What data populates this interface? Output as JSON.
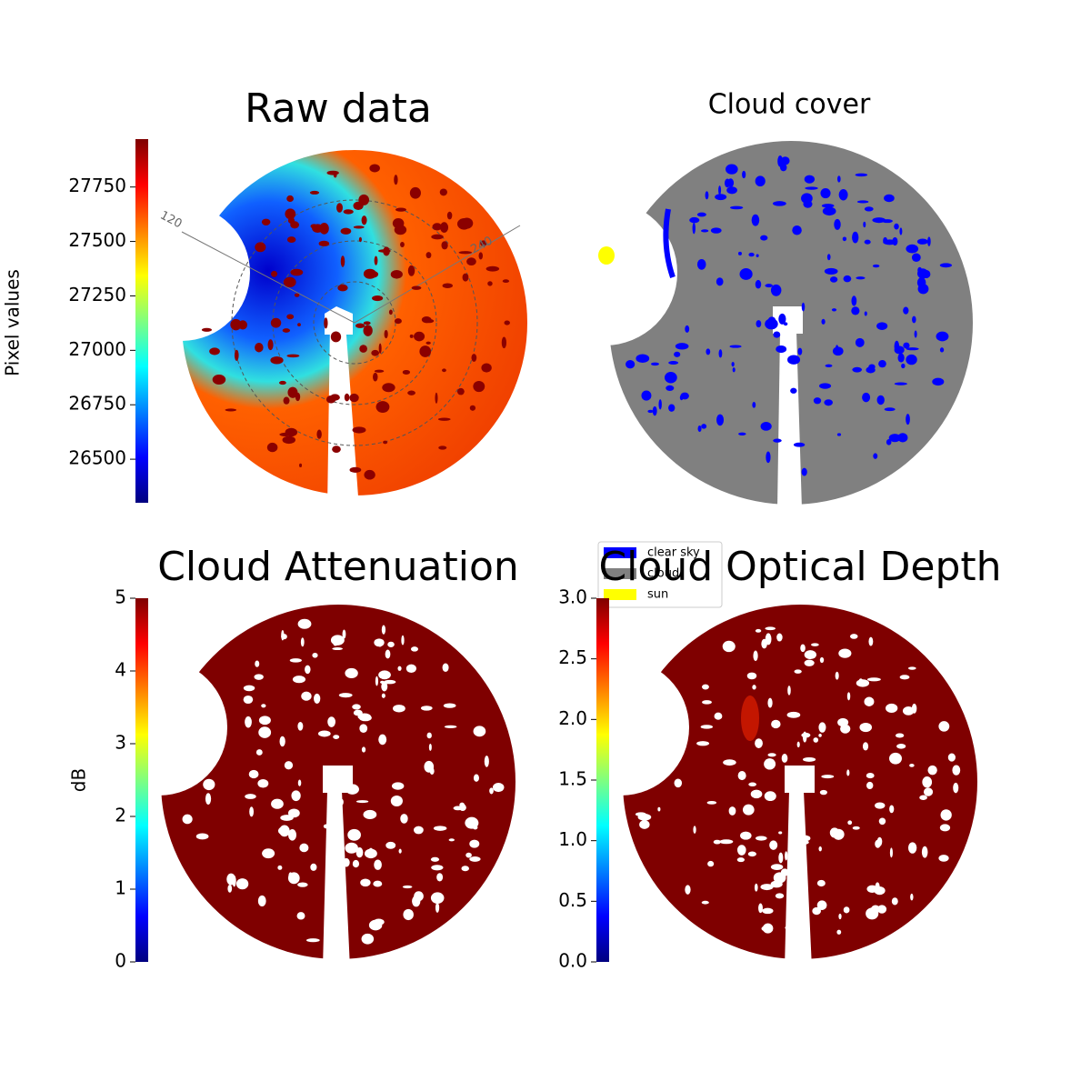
{
  "chart_data": [
    {
      "type": "image",
      "title": "Raw data",
      "colorbar": {
        "label": "Pixel values",
        "colormap": "jet",
        "ylim": [
          26300,
          27970
        ],
        "yticks": [
          26500,
          26750,
          27000,
          27250,
          27500,
          27750
        ]
      },
      "annotations": [
        "120",
        "240"
      ]
    },
    {
      "type": "image",
      "title": "Cloud cover",
      "legend": [
        {
          "name": "clear sky",
          "color": "#0000ff"
        },
        {
          "name": "cloud",
          "color": "#808080"
        },
        {
          "name": "sun",
          "color": "#ffff00"
        }
      ]
    },
    {
      "type": "image",
      "title": "Cloud Attenuation",
      "colorbar": {
        "label": "dB",
        "colormap": "jet",
        "ylim": [
          0,
          5
        ],
        "yticks": [
          0,
          1,
          2,
          3,
          4,
          5
        ]
      }
    },
    {
      "type": "image",
      "title": "Cloud Optical Depth",
      "colorbar": {
        "colormap": "jet",
        "ylim": [
          0,
          3
        ],
        "yticks": [
          {
            "value": 0,
            "label": "0.0"
          },
          0.5,
          {
            "value": 1,
            "label": "1.0"
          },
          1.5,
          {
            "value": 2,
            "label": "2.0"
          },
          2.5,
          {
            "value": 3,
            "label": "3.0"
          }
        ]
      }
    }
  ]
}
